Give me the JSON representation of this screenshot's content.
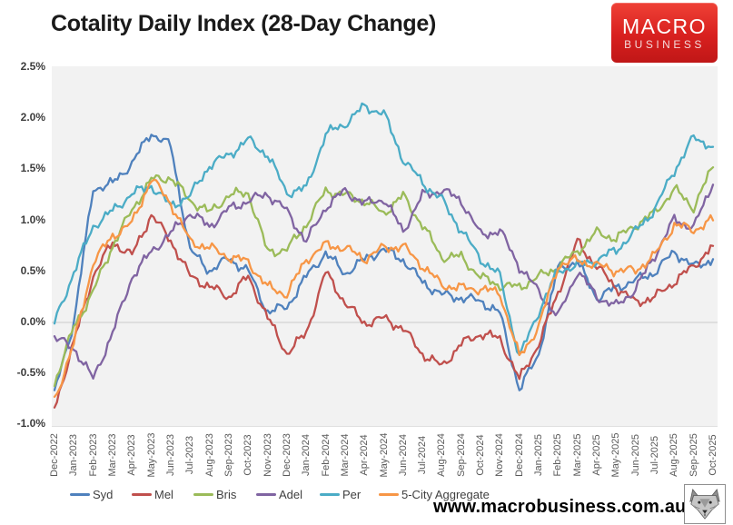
{
  "header": {
    "title": "Cotality Daily Index (28-Day Change)",
    "logo": {
      "line1": "MACRO",
      "line2": "BUSINESS",
      "bg_color": "#d8201f"
    }
  },
  "footer": {
    "url": "www.macrobusiness.com.au",
    "wolf_icon": "wolf-logo"
  },
  "chart_data": {
    "type": "line",
    "title": "Cotality Daily Index (28-Day Change)",
    "ylim": [
      -1.0,
      2.5
    ],
    "y_tick_step": 0.5,
    "y_tick_labels": [
      "2.5%",
      "2.0%",
      "1.5%",
      "1.0%",
      "0.5%",
      "0.0%",
      "-0.5%",
      "-1.0%"
    ],
    "x_tick_labels": [
      "Dec-2022",
      "Jan-2023",
      "Feb-2023",
      "Mar-2023",
      "Apr-2023",
      "May-2023",
      "Jun-2023",
      "Jul-2023",
      "Aug-2023",
      "Sep-2023",
      "Oct-2023",
      "Nov-2023",
      "Dec-2023",
      "Jan-2024",
      "Feb-2024",
      "Mar-2024",
      "Apr-2024",
      "May-2024",
      "Jun-2024",
      "Jul-2024",
      "Aug-2024",
      "Sep-2024",
      "Oct-2024",
      "Nov-2024",
      "Dec-2024",
      "Jan-2025",
      "Feb-2025",
      "Mar-2025",
      "Apr-2025",
      "May-2025",
      "Jun-2025",
      "Jul-2025",
      "Aug-2025",
      "Sep-2025",
      "Oct-2025"
    ],
    "grid": "zero-line-only",
    "zero_line_color": "#c9c9c9",
    "plot_bg": "#f2f2f2",
    "legend_position": "bottom",
    "units": "percent",
    "series": [
      {
        "name": "Syd",
        "color": "#4F81BD",
        "values": [
          -0.7,
          0.0,
          1.3,
          1.35,
          1.55,
          1.85,
          1.72,
          0.7,
          0.5,
          0.62,
          0.5,
          0.1,
          0.15,
          0.45,
          0.68,
          0.48,
          0.62,
          0.72,
          0.62,
          0.4,
          0.28,
          0.25,
          0.22,
          0.1,
          -0.65,
          -0.3,
          0.55,
          0.6,
          0.25,
          0.35,
          0.42,
          0.5,
          0.7,
          0.55,
          0.62
        ]
      },
      {
        "name": "Mel",
        "color": "#C0504D",
        "values": [
          -0.85,
          -0.2,
          0.45,
          0.78,
          0.65,
          1.05,
          0.8,
          0.45,
          0.35,
          0.25,
          0.45,
          0.05,
          -0.3,
          -0.1,
          0.5,
          0.2,
          0.0,
          0.05,
          -0.05,
          -0.3,
          -0.42,
          -0.2,
          -0.1,
          -0.15,
          -0.55,
          -0.2,
          0.3,
          0.8,
          0.55,
          0.35,
          0.2,
          0.25,
          0.4,
          0.55,
          0.75
        ]
      },
      {
        "name": "Bris",
        "color": "#9BBB59",
        "values": [
          -0.6,
          -0.05,
          0.3,
          0.75,
          1.1,
          1.4,
          1.42,
          1.2,
          1.08,
          1.25,
          1.28,
          0.7,
          0.72,
          0.97,
          1.3,
          1.26,
          1.2,
          1.08,
          1.25,
          0.96,
          0.65,
          0.65,
          0.45,
          0.37,
          0.35,
          0.45,
          0.55,
          0.7,
          0.88,
          0.82,
          0.95,
          1.07,
          1.3,
          1.12,
          1.52
        ]
      },
      {
        "name": "Adel",
        "color": "#8064A2",
        "values": [
          -0.15,
          -0.25,
          -0.55,
          -0.1,
          0.45,
          0.7,
          0.88,
          1.08,
          0.95,
          1.12,
          1.2,
          1.27,
          1.1,
          0.8,
          1.14,
          1.3,
          1.17,
          1.22,
          0.9,
          1.25,
          1.3,
          1.2,
          0.86,
          0.9,
          0.55,
          0.3,
          0.05,
          0.5,
          0.25,
          0.15,
          0.32,
          0.65,
          1.0,
          0.92,
          1.35
        ]
      },
      {
        "name": "Per",
        "color": "#4BACC6",
        "values": [
          0.0,
          0.5,
          0.95,
          1.1,
          1.27,
          1.35,
          1.15,
          1.25,
          1.55,
          1.65,
          1.8,
          1.65,
          1.28,
          1.32,
          1.85,
          1.95,
          2.12,
          2.05,
          1.6,
          1.37,
          1.2,
          0.9,
          0.62,
          0.45,
          -0.35,
          0.1,
          0.5,
          0.55,
          0.6,
          0.7,
          0.88,
          1.1,
          1.48,
          1.8,
          1.72
        ]
      },
      {
        "name": "5-City Aggregate",
        "color": "#F79646",
        "values": [
          -0.75,
          -0.2,
          0.6,
          0.86,
          0.98,
          1.42,
          1.18,
          0.8,
          0.74,
          0.65,
          0.6,
          0.35,
          0.28,
          0.62,
          0.76,
          0.73,
          0.62,
          0.73,
          0.74,
          0.55,
          0.36,
          0.33,
          0.32,
          0.28,
          -0.35,
          -0.05,
          0.55,
          0.6,
          0.55,
          0.5,
          0.5,
          0.65,
          0.95,
          0.9,
          1.0
        ]
      }
    ]
  }
}
